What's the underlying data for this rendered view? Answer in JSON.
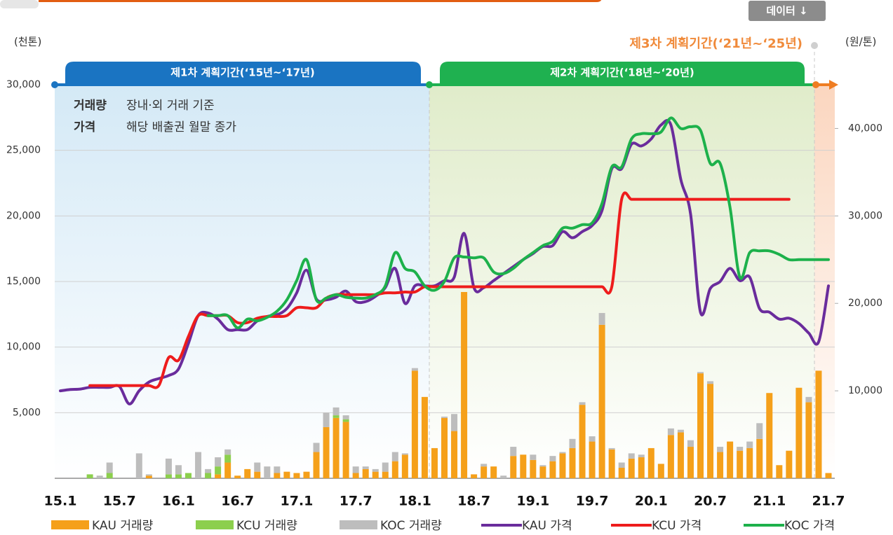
{
  "header": {
    "button": "데이터 ↓"
  },
  "chart_data": {
    "type": "bar-line",
    "y_label": "(천톤)",
    "y2_label": "(원/톤)",
    "periods": [
      "제1차 계획기간(‘15년~‘17년)",
      "제2차 계획기간(‘18년~‘20년)",
      "제3차 계획기간(‘21년~‘25년)"
    ],
    "notes": [
      [
        "거래량",
        "장내·외 거래 기준"
      ],
      [
        "가격",
        "해당 배출권 월말 종가"
      ]
    ],
    "categories": [
      "15.1",
      null,
      null,
      null,
      null,
      null,
      "15.7",
      null,
      null,
      null,
      null,
      null,
      "16.1",
      null,
      null,
      null,
      null,
      null,
      "16.7",
      null,
      null,
      null,
      null,
      null,
      "17.1",
      null,
      null,
      null,
      null,
      null,
      "17.7",
      null,
      null,
      null,
      null,
      null,
      "18.1",
      null,
      null,
      null,
      null,
      null,
      "18.7",
      null,
      null,
      null,
      null,
      null,
      "19.1",
      null,
      null,
      null,
      null,
      null,
      "19.7",
      null,
      null,
      null,
      null,
      null,
      "20.1",
      null,
      null,
      null,
      null,
      null,
      "20.7",
      null,
      null,
      null,
      null,
      null,
      "21.1",
      null,
      null,
      null,
      null,
      null,
      "21.7"
    ],
    "ylim": [
      0,
      30000
    ],
    "yticks": [
      {
        "value": 5000,
        "label": "5,000"
      },
      {
        "value": 10000,
        "label": "10,000"
      },
      {
        "value": 15000,
        "label": "15,000"
      },
      {
        "value": 20000,
        "label": "20,000"
      },
      {
        "value": 25000,
        "label": "25,000"
      },
      {
        "value": 30000,
        "label": "30,000"
      }
    ],
    "y2lim": [
      0,
      45000
    ],
    "y2ticks": [
      {
        "value": 10000,
        "label": "10,000"
      },
      {
        "value": 20000,
        "label": "20,000"
      },
      {
        "value": 30000,
        "label": "30,000"
      },
      {
        "value": 40000,
        "label": "40,000"
      }
    ],
    "grid": true,
    "series": [
      {
        "name": "KAU 거래량",
        "type": "bar",
        "color": "#f5a01a",
        "values": [
          0,
          0,
          0,
          0,
          0,
          0,
          0,
          0,
          0,
          200,
          0,
          0,
          0,
          0,
          0,
          0,
          300,
          1200,
          200,
          700,
          500,
          0,
          400,
          500,
          400,
          500,
          2000,
          3900,
          4600,
          4300,
          400,
          700,
          500,
          500,
          1300,
          1800,
          8200,
          6200,
          2300,
          4600,
          3600,
          14200,
          300,
          900,
          900,
          0,
          1700,
          1800,
          1400,
          900,
          1300,
          1900,
          2300,
          5600,
          2800,
          11700,
          2200,
          800,
          1500,
          1600,
          2300,
          1100,
          3300,
          3500,
          2400,
          8000,
          7200,
          2000,
          2800,
          2100,
          2300,
          3000,
          6500,
          1000,
          2100,
          6900,
          5800,
          8200,
          400
        ]
      },
      {
        "name": "KCU 거래량",
        "type": "bar",
        "color": "#8ccf4d",
        "values": [
          0,
          0,
          0,
          300,
          0,
          400,
          0,
          0,
          0,
          0,
          0,
          300,
          300,
          400,
          0,
          400,
          600,
          600,
          0,
          0,
          0,
          0,
          0,
          0,
          0,
          0,
          0,
          0,
          200,
          200,
          0,
          0,
          0,
          0,
          0,
          0,
          0,
          0,
          0,
          0,
          0,
          0,
          0,
          0,
          0,
          0,
          0,
          0,
          0,
          0,
          0,
          0,
          0,
          0,
          0,
          0,
          0,
          0,
          0,
          0,
          0,
          0,
          0,
          0,
          0,
          0,
          0,
          0,
          0,
          0,
          0,
          0,
          0,
          0,
          0,
          0,
          0,
          0,
          0
        ]
      },
      {
        "name": "KOC 거래량",
        "type": "bar",
        "color": "#bdbdbd",
        "values": [
          0,
          0,
          0,
          0,
          200,
          800,
          0,
          0,
          1900,
          100,
          0,
          1200,
          700,
          0,
          2000,
          300,
          700,
          400,
          0,
          0,
          700,
          900,
          500,
          0,
          0,
          0,
          700,
          1100,
          600,
          300,
          500,
          200,
          200,
          700,
          700,
          100,
          200,
          0,
          0,
          100,
          1300,
          0,
          0,
          200,
          0,
          200,
          700,
          0,
          400,
          100,
          400,
          100,
          700,
          200,
          400,
          900,
          100,
          400,
          400,
          200,
          0,
          0,
          500,
          200,
          500,
          100,
          200,
          400,
          0,
          300,
          500,
          1200,
          0,
          0,
          0,
          0,
          400,
          0,
          0
        ]
      },
      {
        "name": "KAU 가격",
        "type": "line",
        "axis": "y2",
        "color": "#6a2c9c",
        "values": [
          10000,
          10150,
          10200,
          10400,
          10400,
          10400,
          10500,
          8500,
          10000,
          11000,
          11400,
          11750,
          12500,
          15400,
          18600,
          18900,
          18200,
          17000,
          17000,
          17000,
          18000,
          18500,
          18700,
          19400,
          21200,
          23800,
          20500,
          20400,
          20700,
          21400,
          20200,
          20200,
          20800,
          21800,
          24000,
          20000,
          22000,
          22000,
          22000,
          22600,
          23000,
          28000,
          21800,
          21800,
          22600,
          23400,
          24200,
          25000,
          25700,
          26500,
          26600,
          28200,
          27500,
          28200,
          28900,
          30600,
          35400,
          35400,
          38200,
          38000,
          38800,
          40400,
          40400,
          34200,
          30200,
          19000,
          21700,
          22500,
          24000,
          22600,
          23000,
          19400,
          19000,
          18200,
          18300,
          17700,
          16600,
          15600,
          22000
        ]
      },
      {
        "name": "KCU 가격",
        "type": "line",
        "axis": "y2",
        "color": "#ee1c1c",
        "values": [
          null,
          null,
          null,
          10600,
          10600,
          10600,
          10600,
          10600,
          10600,
          10600,
          10600,
          13800,
          13500,
          16200,
          18600,
          18600,
          18600,
          18600,
          17800,
          17800,
          18300,
          18500,
          18500,
          18600,
          19500,
          19500,
          19500,
          20600,
          21000,
          21000,
          21000,
          21000,
          21000,
          21200,
          21200,
          21300,
          21300,
          21900,
          21900,
          21900,
          21900,
          21900,
          21900,
          21900,
          21900,
          21900,
          21900,
          21900,
          21900,
          21900,
          21900,
          21900,
          21900,
          21900,
          21900,
          21900,
          21900,
          31900,
          31900,
          31900,
          31900,
          31900,
          31900,
          31900,
          31900,
          31900,
          31900,
          31900,
          31900,
          31900,
          31900,
          31900,
          31900,
          31900,
          31900,
          null,
          null,
          null,
          null
        ]
      },
      {
        "name": "KOC 가격",
        "type": "line",
        "axis": "y2",
        "color": "#1db14b",
        "values": [
          null,
          null,
          null,
          null,
          null,
          null,
          null,
          null,
          null,
          null,
          null,
          null,
          null,
          null,
          null,
          18600,
          18600,
          18600,
          17200,
          18200,
          18000,
          18400,
          19100,
          20400,
          22600,
          25000,
          20400,
          20600,
          21000,
          20700,
          20600,
          20600,
          21000,
          22000,
          25800,
          24000,
          23600,
          22000,
          21500,
          22500,
          25200,
          25300,
          25200,
          25200,
          23600,
          23400,
          24000,
          25000,
          25800,
          26600,
          27100,
          28600,
          28600,
          29000,
          29200,
          31400,
          35600,
          35600,
          38800,
          39400,
          39400,
          39600,
          41200,
          40000,
          40200,
          39800,
          36000,
          36000,
          31000,
          23000,
          25800,
          26000,
          26000,
          25600,
          25000,
          25000,
          25000,
          25000,
          25000
        ]
      }
    ]
  }
}
